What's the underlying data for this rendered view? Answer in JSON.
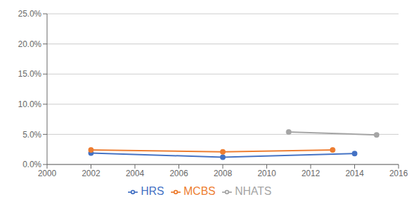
{
  "chart_data": {
    "type": "line",
    "series": [
      {
        "name": "HRS",
        "color": "#4472C4",
        "x": [
          2002,
          2008,
          2014
        ],
        "values": [
          0.019,
          0.012,
          0.018
        ]
      },
      {
        "name": "MCBS",
        "color": "#ED7D31",
        "x": [
          2002,
          2008,
          2013
        ],
        "values": [
          0.024,
          0.021,
          0.024
        ]
      },
      {
        "name": "NHATS",
        "color": "#A5A5A5",
        "x": [
          2011,
          2015
        ],
        "values": [
          0.054,
          0.049
        ]
      }
    ],
    "xlim": [
      2000,
      2016
    ],
    "xticks": [
      2000,
      2002,
      2004,
      2006,
      2008,
      2010,
      2012,
      2014,
      2016
    ],
    "ylim": [
      0,
      0.25
    ],
    "yticks": [
      {
        "value": 0.0,
        "label": "0.0%"
      },
      {
        "value": 0.05,
        "label": "5.0%"
      },
      {
        "value": 0.1,
        "label": "10.0%"
      },
      {
        "value": 0.15,
        "label": "15.0%"
      },
      {
        "value": 0.2,
        "label": "20.0%"
      },
      {
        "value": 0.25,
        "label": "25.0%"
      }
    ],
    "grid": true,
    "legend": "bottom",
    "marker": "circle"
  }
}
